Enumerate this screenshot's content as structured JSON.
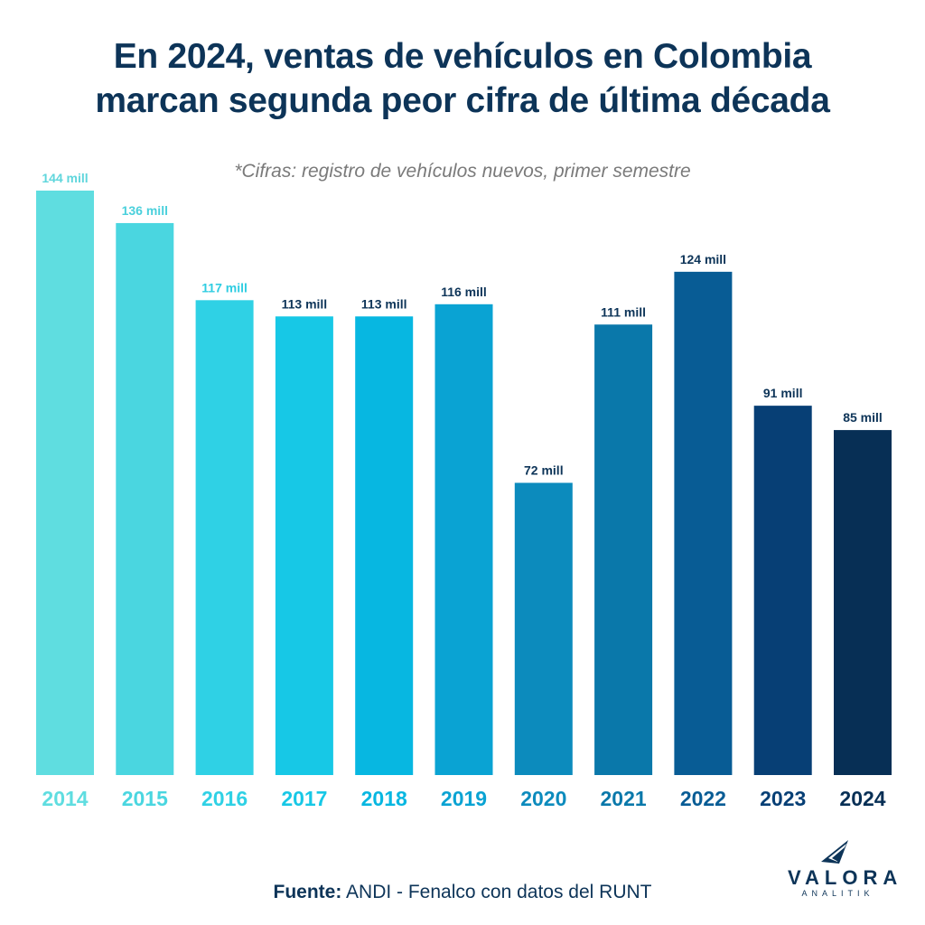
{
  "chart_data": {
    "type": "bar",
    "title_lines": [
      "En 2024, ventas de vehículos en Colombia",
      "marcan segunda peor cifra de última década"
    ],
    "subtitle": "*Cifras: registro de vehículos nuevos, primer semestre",
    "categories": [
      "2014",
      "2015",
      "2016",
      "2017",
      "2018",
      "2019",
      "2020",
      "2021",
      "2022",
      "2023",
      "2024"
    ],
    "values": [
      144,
      136,
      117,
      113,
      113,
      116,
      72,
      111,
      124,
      91,
      85
    ],
    "value_labels": [
      "144 mill",
      "136 mill",
      "117 mill",
      "113 mill",
      "113 mill",
      "116 mill",
      "72 mill",
      "111 mill",
      "124 mill",
      "91 mill",
      "85 mill"
    ],
    "colors": [
      "#5fdde0",
      "#4ad6e0",
      "#2fd1e5",
      "#17c8e6",
      "#07b7e1",
      "#0aa3d3",
      "#0c8bbd",
      "#0a78aa",
      "#085c95",
      "#073f75",
      "#072f55"
    ],
    "label_colors": [
      "#5fd6dc",
      "#4ad0dc",
      "#2fcde2",
      "#0d3458",
      "#0d3458",
      "#0d3458",
      "#0d3458",
      "#0d3458",
      "#0d3458",
      "#0d3458",
      "#0d3458"
    ],
    "ylim": [
      0,
      144
    ],
    "xlabel": "",
    "ylabel": ""
  },
  "footer": {
    "source_label": "Fuente:",
    "source_text": " ANDI - Fenalco con datos del RUNT"
  },
  "logo": {
    "name": "VALORA",
    "sub": "ANALITIK"
  }
}
